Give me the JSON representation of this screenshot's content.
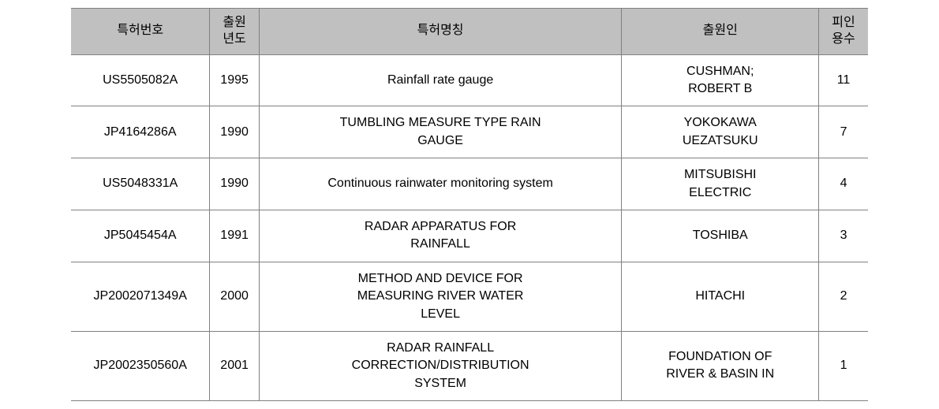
{
  "table": {
    "columns": [
      {
        "label": "특허번호",
        "key": "patent_no",
        "class": "col-patent-no"
      },
      {
        "label": "출원\n년도",
        "key": "year",
        "class": "col-year"
      },
      {
        "label": "특허명칭",
        "key": "title",
        "class": "col-title"
      },
      {
        "label": "출원인",
        "key": "applicant",
        "class": "col-applicant"
      },
      {
        "label": "피인\n용수",
        "key": "citations",
        "class": "col-citations"
      }
    ],
    "rows": [
      {
        "patent_no": "US5505082A",
        "year": "1995",
        "title": "Rainfall rate gauge",
        "applicant": "CUSHMAN;\nROBERT B",
        "citations": "11"
      },
      {
        "patent_no": "JP4164286A",
        "year": "1990",
        "title": "TUMBLING MEASURE TYPE RAIN\nGAUGE",
        "applicant": "YOKOKAWA\nUEZATSUKU",
        "citations": "7"
      },
      {
        "patent_no": "US5048331A",
        "year": "1990",
        "title": "Continuous rainwater monitoring system",
        "applicant": "MITSUBISHI\nELECTRIC",
        "citations": "4"
      },
      {
        "patent_no": "JP5045454A",
        "year": "1991",
        "title": "RADAR APPARATUS FOR\nRAINFALL",
        "applicant": "TOSHIBA",
        "citations": "3"
      },
      {
        "patent_no": "JP2002071349A",
        "year": "2000",
        "title": "METHOD AND DEVICE FOR\nMEASURING RIVER WATER\nLEVEL",
        "applicant": "HITACHI",
        "citations": "2"
      },
      {
        "patent_no": "JP2002350560A",
        "year": "2001",
        "title": "RADAR RAINFALL\nCORRECTION/DISTRIBUTION\nSYSTEM",
        "applicant": "FOUNDATION OF\nRIVER & BASIN IN",
        "citations": "1"
      }
    ],
    "header_bg": "#c0c0c0",
    "border_color": "#808080",
    "text_color": "#000000",
    "font_size": 16
  }
}
